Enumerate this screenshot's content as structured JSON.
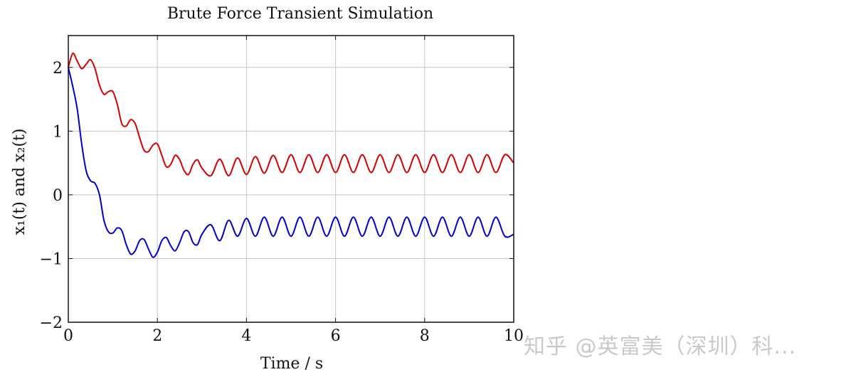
{
  "chart_data": {
    "type": "line",
    "title": "Brute Force Transient Simulation",
    "xlabel": "Time / s",
    "ylabel": "x₁(t) and x₂(t)",
    "xlim": [
      0,
      10
    ],
    "ylim": [
      -2,
      2.5
    ],
    "xticks": [
      0,
      2,
      4,
      6,
      8,
      10
    ],
    "yticks": [
      -2,
      -1,
      0,
      1,
      2
    ],
    "xtick_labels": [
      "0",
      "2",
      "4",
      "6",
      "8",
      "10"
    ],
    "ytick_labels": [
      "−2",
      "−1",
      "0",
      "1",
      "2"
    ],
    "grid": true,
    "series": [
      {
        "name": "x1",
        "color": "#0000c8",
        "x": [
          0,
          0.1,
          0.2,
          0.3,
          0.4,
          0.5,
          0.6,
          0.7,
          0.8,
          0.9,
          1.0,
          1.1,
          1.2,
          1.3,
          1.4,
          1.5,
          1.6,
          1.7,
          1.8,
          1.9,
          2.0,
          2.1,
          2.2,
          2.3,
          2.4,
          2.5,
          2.6,
          2.7,
          2.8,
          2.9,
          3.0,
          3.2,
          3.4,
          3.6,
          3.8,
          4.0,
          4.2,
          4.4,
          4.6,
          4.8,
          5.0,
          5.2,
          5.4,
          5.6,
          5.8,
          6.0,
          6.2,
          6.4,
          6.6,
          6.8,
          7.0,
          7.2,
          7.4,
          7.6,
          7.8,
          8.0,
          8.2,
          8.4,
          8.6,
          8.8,
          9.0,
          9.2,
          9.4,
          9.6,
          9.8,
          10.0
        ],
        "y": [
          2.0,
          1.7,
          1.35,
          0.8,
          0.38,
          0.22,
          0.18,
          0.0,
          -0.4,
          -0.58,
          -0.6,
          -0.52,
          -0.56,
          -0.78,
          -0.93,
          -0.88,
          -0.72,
          -0.7,
          -0.85,
          -0.98,
          -0.9,
          -0.72,
          -0.67,
          -0.8,
          -0.88,
          -0.75,
          -0.58,
          -0.58,
          -0.75,
          -0.78,
          -0.62,
          -0.47,
          -0.72,
          -0.4,
          -0.65,
          -0.37,
          -0.65,
          -0.35,
          -0.65,
          -0.35,
          -0.65,
          -0.35,
          -0.65,
          -0.35,
          -0.65,
          -0.35,
          -0.65,
          -0.35,
          -0.65,
          -0.35,
          -0.65,
          -0.35,
          -0.65,
          -0.35,
          -0.65,
          -0.35,
          -0.65,
          -0.35,
          -0.65,
          -0.35,
          -0.65,
          -0.35,
          -0.65,
          -0.35,
          -0.65,
          -0.62
        ]
      },
      {
        "name": "x2",
        "color": "#d40000",
        "x": [
          0,
          0.1,
          0.2,
          0.3,
          0.4,
          0.5,
          0.6,
          0.7,
          0.8,
          0.9,
          1.0,
          1.1,
          1.2,
          1.3,
          1.4,
          1.5,
          1.6,
          1.7,
          1.8,
          1.9,
          2.0,
          2.1,
          2.2,
          2.3,
          2.4,
          2.5,
          2.6,
          2.7,
          2.8,
          2.9,
          3.0,
          3.2,
          3.4,
          3.6,
          3.8,
          4.0,
          4.2,
          4.4,
          4.6,
          4.8,
          5.0,
          5.2,
          5.4,
          5.6,
          5.8,
          6.0,
          6.2,
          6.4,
          6.6,
          6.8,
          7.0,
          7.2,
          7.4,
          7.6,
          7.8,
          8.0,
          8.2,
          8.4,
          8.6,
          8.8,
          9.0,
          9.2,
          9.4,
          9.6,
          9.8,
          10.0
        ],
        "y": [
          2.0,
          2.22,
          2.1,
          1.98,
          2.05,
          2.12,
          1.98,
          1.72,
          1.58,
          1.62,
          1.62,
          1.42,
          1.12,
          1.08,
          1.18,
          1.12,
          0.9,
          0.7,
          0.68,
          0.78,
          0.8,
          0.62,
          0.44,
          0.48,
          0.62,
          0.55,
          0.38,
          0.32,
          0.48,
          0.55,
          0.42,
          0.3,
          0.56,
          0.3,
          0.58,
          0.32,
          0.6,
          0.34,
          0.62,
          0.35,
          0.63,
          0.35,
          0.63,
          0.35,
          0.63,
          0.35,
          0.63,
          0.35,
          0.63,
          0.35,
          0.63,
          0.35,
          0.63,
          0.35,
          0.63,
          0.35,
          0.63,
          0.35,
          0.63,
          0.35,
          0.63,
          0.35,
          0.63,
          0.35,
          0.63,
          0.5
        ]
      }
    ]
  },
  "watermark": "知乎 @英富美（深圳）科..."
}
